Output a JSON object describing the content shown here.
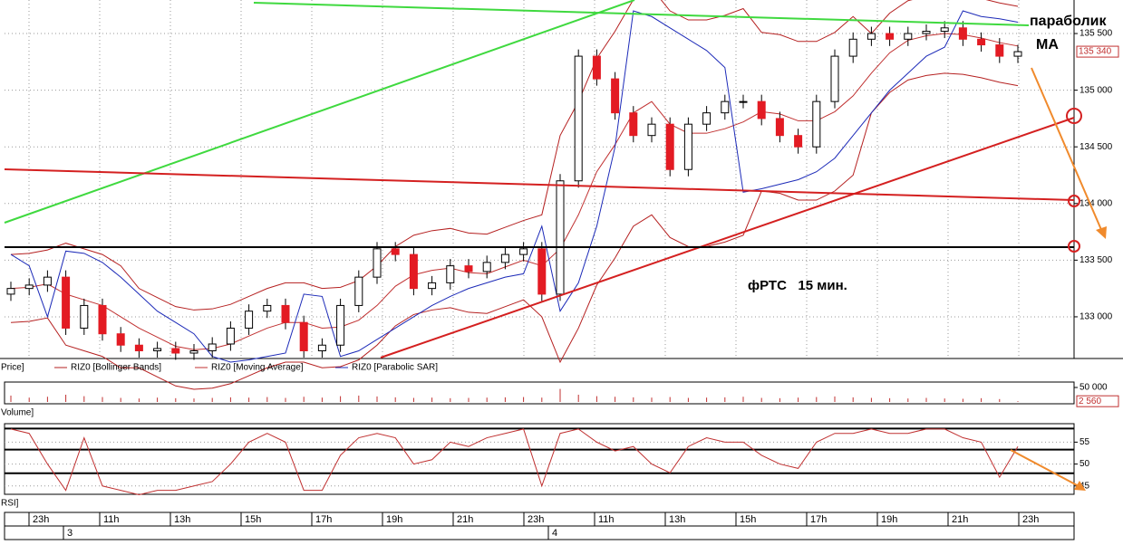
{
  "chart_data": [
    {
      "type": "candlestick",
      "panel_label": "Price]",
      "annotations": [
        "параболик",
        "MA",
        "фРТС   15 мин."
      ],
      "open": [
        133200,
        133250,
        133280,
        133350,
        132900,
        133100,
        132850,
        132750,
        132700,
        132720,
        132680,
        132700,
        132760,
        132900,
        133050,
        133100,
        132950,
        132700,
        132750,
        133100,
        133350,
        133600,
        133550,
        133250,
        133300,
        133450,
        133400,
        133480,
        133550,
        133600,
        133200,
        134200,
        135300,
        135100,
        134800,
        134600,
        134700,
        134300,
        134700,
        134800,
        134900,
        134900,
        134750,
        134600,
        134500,
        134900,
        135300,
        135450,
        135500,
        135450,
        135500,
        135520,
        135550,
        135450,
        135400,
        135300
      ],
      "high": [
        133310,
        133340,
        133410,
        133410,
        133160,
        133160,
        132910,
        132810,
        132780,
        132780,
        132760,
        132820,
        132960,
        133110,
        133160,
        133160,
        133010,
        132810,
        133160,
        133410,
        133660,
        133660,
        133610,
        133360,
        133510,
        133510,
        133540,
        133610,
        133660,
        133660,
        134260,
        135360,
        135360,
        135160,
        134860,
        134760,
        134760,
        134760,
        134860,
        134960,
        134960,
        134960,
        134810,
        134660,
        134960,
        135360,
        135510,
        135560,
        135560,
        135560,
        135580,
        135610,
        135610,
        135510,
        135460,
        135400
      ],
      "low": [
        133140,
        133190,
        133220,
        132840,
        132840,
        132790,
        132690,
        132640,
        132640,
        132620,
        132620,
        132640,
        132700,
        132840,
        132990,
        132890,
        132640,
        132640,
        132690,
        133040,
        133290,
        133490,
        133190,
        133190,
        133240,
        133340,
        133340,
        133420,
        133490,
        133140,
        133140,
        134140,
        135040,
        134740,
        134540,
        134540,
        134240,
        134240,
        134640,
        134740,
        134840,
        134690,
        134540,
        134440,
        134440,
        134840,
        135240,
        135390,
        135390,
        135390,
        135440,
        135460,
        135390,
        135340,
        135240,
        135240
      ],
      "close": [
        133250,
        133280,
        133350,
        132900,
        133100,
        132850,
        132750,
        132700,
        132720,
        132680,
        132700,
        132760,
        132900,
        133050,
        133100,
        132950,
        132700,
        132750,
        133100,
        133350,
        133600,
        133550,
        133250,
        133300,
        133450,
        133400,
        133480,
        133550,
        133600,
        133200,
        134200,
        135300,
        135100,
        134800,
        134600,
        134700,
        134300,
        134700,
        134800,
        134900,
        134900,
        134750,
        134600,
        134500,
        134900,
        135300,
        135450,
        135500,
        135450,
        135500,
        135520,
        135550,
        135450,
        135400,
        135300,
        135340
      ],
      "up_color": "#ffffff",
      "down_color": "#e31b23",
      "overlays": [
        {
          "name": "RIZ0 [Bollinger Bands]",
          "color": "#b52020",
          "upper": [
            133550,
            133560,
            133590,
            133650,
            133600,
            133550,
            133450,
            133250,
            133170,
            133090,
            133060,
            133070,
            133110,
            133180,
            133250,
            133300,
            133300,
            133250,
            133260,
            133320,
            133450,
            133620,
            133720,
            133760,
            133780,
            133740,
            133730,
            133790,
            133850,
            133900,
            134600,
            134900,
            135280,
            135520,
            135800,
            135900,
            135700,
            135620,
            135620,
            135660,
            135720,
            135510,
            135490,
            135430,
            135430,
            135510,
            135650,
            135500,
            135680,
            135790,
            135830,
            135850,
            135840,
            135810,
            135770,
            135740
          ],
          "lower": [
            132950,
            132960,
            132990,
            132750,
            132700,
            132650,
            132550,
            132550,
            132470,
            132390,
            132360,
            132370,
            132410,
            132480,
            132550,
            132600,
            132600,
            132550,
            132560,
            132620,
            132750,
            132920,
            133020,
            133060,
            133080,
            133040,
            133030,
            133090,
            133150,
            133000,
            132600,
            132900,
            133280,
            133520,
            133800,
            133900,
            133700,
            133620,
            133620,
            133660,
            133720,
            134110,
            134090,
            134030,
            134030,
            134110,
            134250,
            134800,
            134980,
            135090,
            135130,
            135150,
            135140,
            135110,
            135070,
            135040
          ]
        },
        {
          "name": "RIZ0 [Moving Average]",
          "color": "#c03030",
          "values": [
            133250,
            133260,
            133290,
            133200,
            133150,
            133100,
            133000,
            132900,
            132820,
            132740,
            132710,
            132720,
            132760,
            132830,
            132900,
            132950,
            132950,
            132900,
            132910,
            132970,
            133100,
            133270,
            133370,
            133410,
            133430,
            133390,
            133380,
            133440,
            133500,
            133450,
            133600,
            133900,
            134280,
            134520,
            134800,
            134900,
            134700,
            134620,
            134620,
            134660,
            134720,
            134810,
            134790,
            134730,
            134730,
            134810,
            134950,
            135150,
            135330,
            135440,
            135480,
            135500,
            135490,
            135460,
            135420,
            135390
          ]
        },
        {
          "name": "RIZ0 [Parabolic SAR]",
          "color": "#1c2ab8",
          "values": [
            133550,
            133450,
            133000,
            133580,
            133560,
            133480,
            133350,
            133200,
            133050,
            132950,
            132850,
            132650,
            132600,
            132620,
            132650,
            132680,
            133200,
            133180,
            132650,
            132700,
            132800,
            132900,
            133000,
            133100,
            133180,
            133250,
            133300,
            133350,
            133380,
            133800,
            133050,
            133300,
            133800,
            134500,
            135700,
            135650,
            135550,
            135450,
            135350,
            135200,
            134100,
            134130,
            134170,
            134210,
            134280,
            134400,
            134600,
            134800,
            135000,
            135150,
            135300,
            135380,
            135700,
            135650,
            135630,
            135600
          ]
        }
      ],
      "ylim": [
        132640,
        135780
      ],
      "yticks": [
        {
          "value": 133000,
          "label": "133 000"
        },
        {
          "value": 133500,
          "label": "133 500"
        },
        {
          "value": 134000,
          "label": "134 000"
        },
        {
          "value": 134500,
          "label": "134 500"
        },
        {
          "value": 135000,
          "label": "135 000"
        },
        {
          "value": 135500,
          "label": "135 500"
        }
      ],
      "last_value": 135340,
      "last_label": "135 340",
      "grid": true
    },
    {
      "type": "bar",
      "panel_label": "Volume]",
      "color": "#c03030",
      "values": [
        22000,
        15000,
        18000,
        25000,
        20000,
        17000,
        14000,
        12000,
        15000,
        13000,
        12000,
        14000,
        16000,
        15000,
        17000,
        14000,
        18000,
        15000,
        20000,
        22000,
        19000,
        16000,
        14000,
        15000,
        13000,
        14000,
        15000,
        16000,
        17000,
        15000,
        45000,
        25000,
        20000,
        18000,
        16000,
        15000,
        17000,
        14000,
        15000,
        16000,
        18000,
        14000,
        13000,
        15000,
        17000,
        19000,
        16000,
        14000,
        13000,
        12000,
        14000,
        12000,
        11000,
        13000,
        10000,
        2560
      ],
      "ylim": [
        0,
        62500
      ],
      "yticks": [
        {
          "value": 50000,
          "label": "50 000"
        }
      ],
      "last_value": 2560,
      "last_label": "2 560"
    },
    {
      "type": "line",
      "panel_label": "RSI]",
      "color": "#c03030",
      "values": [
        58,
        57,
        50,
        44,
        56,
        45,
        44,
        43,
        44,
        44,
        45,
        46,
        50,
        55,
        57,
        55,
        44,
        44,
        52,
        56,
        57,
        56,
        50,
        51,
        55,
        54,
        56,
        57,
        58,
        45,
        57,
        58,
        55,
        53,
        54,
        50,
        48,
        54,
        56,
        55,
        55,
        52,
        50,
        49,
        55,
        57,
        57,
        58,
        57,
        57,
        58,
        58,
        56,
        55,
        47,
        54
      ],
      "levels": [
        58.1,
        53.3,
        47.9
      ],
      "ylim": [
        43.3,
        58.8
      ],
      "yticks": [
        45,
        50,
        55
      ],
      "grid": true
    }
  ],
  "time_axis": {
    "labels": [
      "23h",
      "11h",
      "13h",
      "15h",
      "17h",
      "19h",
      "21h",
      "23h",
      "11h",
      "13h",
      "15h",
      "17h",
      "19h",
      "21h",
      "23h"
    ],
    "days": [
      "3",
      "4"
    ]
  }
}
